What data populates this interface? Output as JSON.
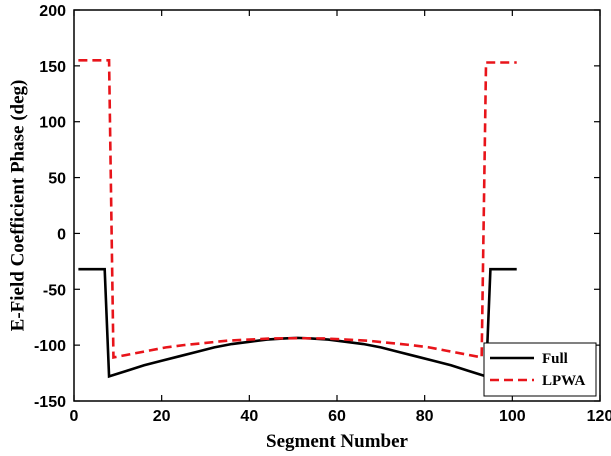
{
  "chart_data": {
    "type": "line",
    "xlabel": "Segment Number",
    "ylabel": "E-Field Coefficient Phase (deg)",
    "xlim": [
      0,
      120
    ],
    "ylim": [
      -150,
      200
    ],
    "xticks": [
      0,
      20,
      40,
      60,
      80,
      100,
      120
    ],
    "yticks": [
      -150,
      -100,
      -50,
      0,
      50,
      100,
      150,
      200
    ],
    "grid": false,
    "legend_position": "bottom-right",
    "series": [
      {
        "name": "Full",
        "color": "#000000",
        "style": "solid",
        "points": [
          [
            1,
            -32
          ],
          [
            7,
            -32
          ],
          [
            8,
            -128
          ],
          [
            12,
            -123
          ],
          [
            16,
            -118
          ],
          [
            20,
            -114
          ],
          [
            24,
            -110
          ],
          [
            28,
            -106
          ],
          [
            32,
            -102
          ],
          [
            36,
            -99
          ],
          [
            40,
            -97
          ],
          [
            44,
            -95
          ],
          [
            48,
            -94
          ],
          [
            51,
            -93.5
          ],
          [
            54,
            -94
          ],
          [
            58,
            -95
          ],
          [
            62,
            -97
          ],
          [
            66,
            -99
          ],
          [
            70,
            -102
          ],
          [
            74,
            -106
          ],
          [
            78,
            -110
          ],
          [
            82,
            -114
          ],
          [
            86,
            -118
          ],
          [
            90,
            -123
          ],
          [
            94,
            -128
          ],
          [
            95,
            -32
          ],
          [
            101,
            -32
          ]
        ]
      },
      {
        "name": "LPWA",
        "color": "#e8141a",
        "style": "dashed",
        "points": [
          [
            1,
            155
          ],
          [
            8,
            155
          ],
          [
            9,
            -111
          ],
          [
            13,
            -108
          ],
          [
            17,
            -105
          ],
          [
            21,
            -102
          ],
          [
            25,
            -100
          ],
          [
            30,
            -98
          ],
          [
            35,
            -96
          ],
          [
            40,
            -95
          ],
          [
            45,
            -94
          ],
          [
            51,
            -93.8
          ],
          [
            57,
            -94
          ],
          [
            62,
            -95
          ],
          [
            67,
            -96
          ],
          [
            72,
            -98
          ],
          [
            77,
            -100
          ],
          [
            81,
            -102
          ],
          [
            85,
            -105
          ],
          [
            89,
            -108
          ],
          [
            93,
            -111
          ],
          [
            94,
            153
          ],
          [
            101,
            153
          ]
        ]
      }
    ]
  }
}
